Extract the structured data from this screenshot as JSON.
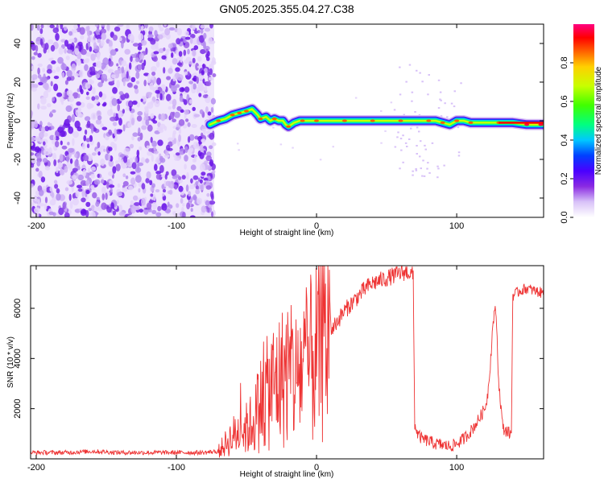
{
  "figure_title": "GN05.2025.355.04.27.C38",
  "chart_data": [
    {
      "type": "heatmap",
      "panel": "spectrogram",
      "xlabel": "Height of straight line (km)",
      "ylabel": "Frequency (Hz)",
      "xlim": [
        -204,
        162
      ],
      "ylim": [
        -50,
        50
      ],
      "x_ticks": [
        -200,
        -100,
        0,
        100
      ],
      "y_ticks": [
        -40,
        -20,
        0,
        20,
        40
      ],
      "noise_region_x": [
        -204,
        -73
      ],
      "signal_ridge": {
        "x": [
          -76,
          -70,
          -65,
          -60,
          -55,
          -50,
          -46,
          -42,
          -40,
          -36,
          -33,
          -30,
          -27,
          -24,
          -22,
          -20,
          -18,
          -16,
          -12,
          -8,
          -4,
          0,
          20,
          40,
          60,
          80,
          85,
          90,
          95,
          100,
          105,
          110,
          120,
          130,
          140,
          150,
          162
        ],
        "y": [
          -2,
          0,
          1,
          3,
          4,
          5,
          6,
          3,
          1,
          2,
          0,
          1,
          0,
          0,
          -2,
          -3,
          -2,
          -1,
          0,
          0,
          0,
          0,
          0,
          0,
          0,
          0,
          0,
          -1,
          -2,
          0,
          0,
          -1,
          -1,
          -1,
          -1,
          -2,
          -2
        ]
      },
      "colorbar": {
        "label": "Normalized spectral amplitude",
        "ticks": [
          0.0,
          0.2,
          0.4,
          0.6,
          0.8
        ],
        "range": [
          0,
          1
        ],
        "colormap": [
          "#ffffff",
          "#d8c2f8",
          "#8a2be2",
          "#4a00ff",
          "#0040ff",
          "#00c8ff",
          "#00ff80",
          "#40ff00",
          "#c8ff00",
          "#ffd000",
          "#ff6000",
          "#ff0000",
          "#ff0080"
        ]
      }
    },
    {
      "type": "line",
      "panel": "snr",
      "xlabel": "Height of straight line (km)",
      "ylabel": "SNR (10 * v/v)",
      "xlim": [
        -204,
        162
      ],
      "ylim": [
        0,
        7700
      ],
      "x_ticks": [
        -200,
        -100,
        0,
        100
      ],
      "y_ticks": [
        2000,
        4000,
        6000
      ],
      "series": [
        {
          "color": "#ee3333",
          "x": [
            -204,
            -180,
            -160,
            -140,
            -120,
            -100,
            -80,
            -70,
            -65,
            -60,
            -55,
            -50,
            -45,
            -40,
            -35,
            -30,
            -25,
            -20,
            -15,
            -10,
            -5,
            0,
            5,
            10,
            15,
            20,
            25,
            30,
            35,
            40,
            50,
            60,
            65,
            69,
            70,
            72,
            75,
            80,
            85,
            90,
            95,
            100,
            105,
            110,
            115,
            120,
            122,
            124,
            126,
            128,
            130,
            133,
            136,
            138,
            139,
            140,
            145,
            150,
            155,
            162
          ],
          "y": [
            250,
            250,
            300,
            250,
            250,
            250,
            250,
            300,
            600,
            900,
            1100,
            1200,
            1500,
            2200,
            2600,
            3000,
            3200,
            3600,
            3200,
            3700,
            3800,
            4200,
            4700,
            5100,
            5500,
            5900,
            6200,
            6500,
            6800,
            7000,
            7200,
            7400,
            7450,
            7300,
            1400,
            1000,
            800,
            700,
            600,
            550,
            500,
            600,
            800,
            1100,
            1500,
            2000,
            2500,
            3800,
            5500,
            6000,
            3000,
            1200,
            1100,
            1000,
            1000,
            6500,
            6700,
            6800,
            6700,
            6600
          ]
        }
      ]
    }
  ]
}
